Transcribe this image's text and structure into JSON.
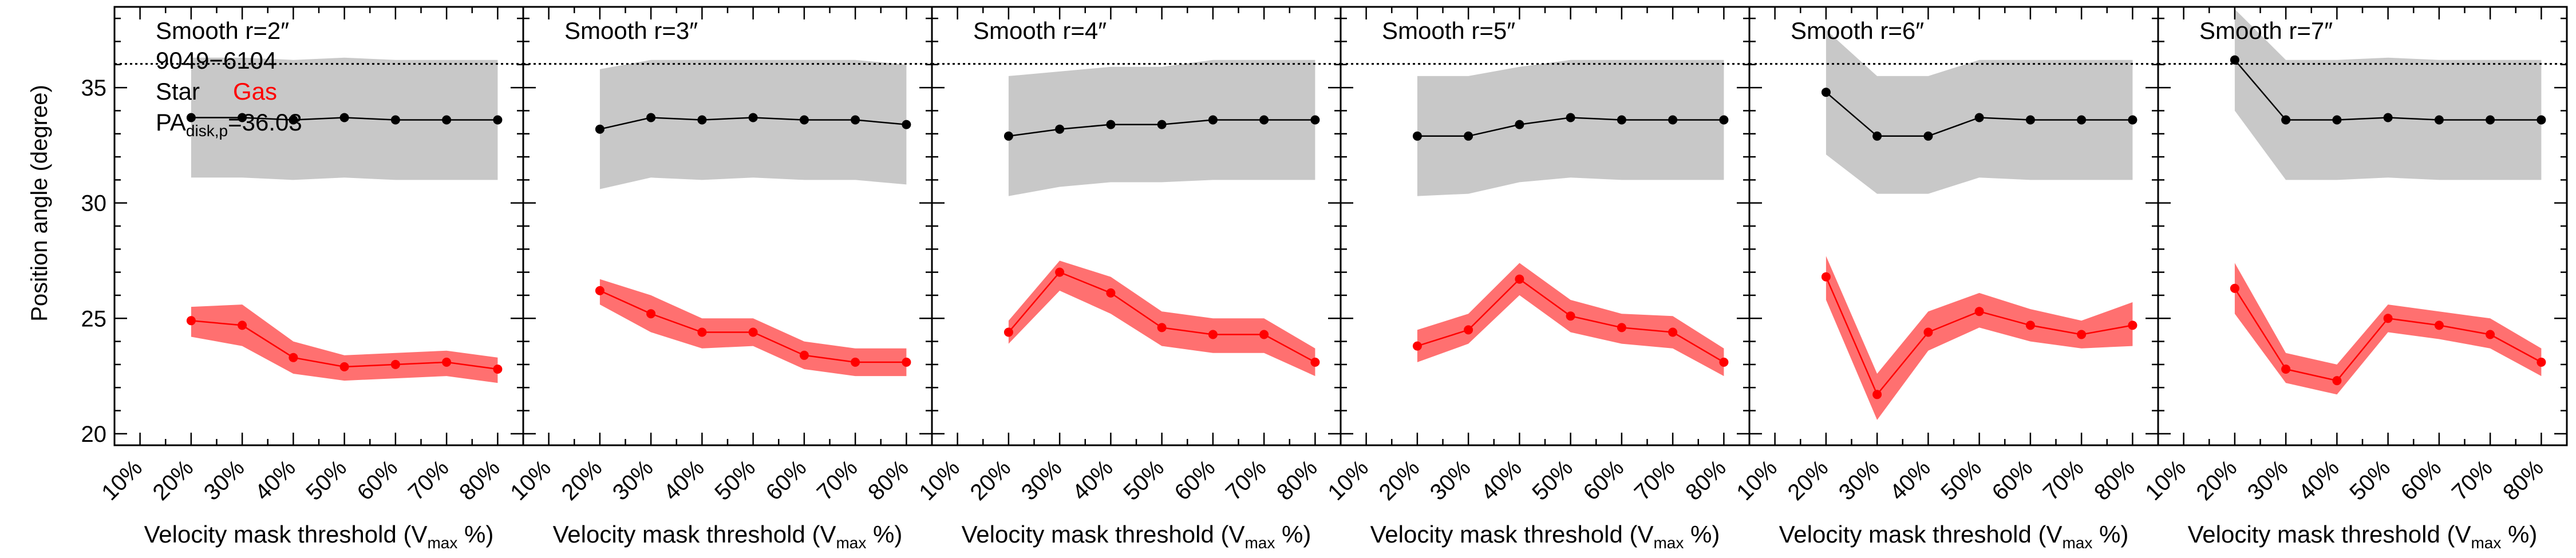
{
  "figure": {
    "ylabel": "Position angle (degree)",
    "legend": {
      "object_id": "9049−6104",
      "star_label": "Star",
      "gas_label": "Gas",
      "pa_prefix": "PA",
      "pa_sub": "disk,p",
      "pa_value": "=36.03"
    },
    "reference_line": 36.03,
    "colors": {
      "star": "#000000",
      "star_band": "#c8c8c8",
      "gas": "#ff0000",
      "gas_band": "#ff7070",
      "reference": "#000000"
    }
  },
  "chart_data": [
    {
      "type": "line",
      "title": "Smooth r=2″",
      "xlabel": "Velocity mask threshold (V",
      "xlabel_sub": "max",
      "xlabel_end": " %)",
      "categories": [
        "10%",
        "20%",
        "30%",
        "40%",
        "50%",
        "60%",
        "70%",
        "80%"
      ],
      "x": [
        20,
        30,
        40,
        50,
        60,
        70,
        80
      ],
      "xlim": [
        5,
        85
      ],
      "ylim": [
        19.5,
        38.5
      ],
      "yticks": [
        20,
        25,
        30,
        35
      ],
      "series": [
        {
          "name": "Star",
          "values": [
            33.7,
            33.7,
            33.6,
            33.7,
            33.6,
            33.6,
            33.6
          ],
          "band_lo": [
            31.1,
            31.1,
            31.0,
            31.1,
            31.0,
            31.0,
            31.0
          ],
          "band_hi": [
            36.3,
            36.3,
            36.2,
            36.3,
            36.2,
            36.2,
            36.2
          ]
        },
        {
          "name": "Gas",
          "values": [
            24.9,
            24.7,
            23.3,
            22.9,
            23.0,
            23.1,
            22.8
          ],
          "band_lo": [
            24.2,
            23.8,
            22.6,
            22.3,
            22.4,
            22.5,
            22.2
          ],
          "band_hi": [
            25.5,
            25.6,
            24.0,
            23.4,
            23.5,
            23.6,
            23.3
          ]
        }
      ]
    },
    {
      "type": "line",
      "title": "Smooth r=3″",
      "xlabel": "Velocity mask threshold (V",
      "xlabel_sub": "max",
      "xlabel_end": " %)",
      "categories": [
        "10%",
        "20%",
        "30%",
        "40%",
        "50%",
        "60%",
        "70%",
        "80%"
      ],
      "x": [
        20,
        30,
        40,
        50,
        60,
        70,
        80
      ],
      "xlim": [
        5,
        85
      ],
      "ylim": [
        19.5,
        38.5
      ],
      "yticks": [
        20,
        25,
        30,
        35
      ],
      "series": [
        {
          "name": "Star",
          "values": [
            33.2,
            33.7,
            33.6,
            33.7,
            33.6,
            33.6,
            33.4
          ],
          "band_lo": [
            30.6,
            31.1,
            31.0,
            31.1,
            31.0,
            31.0,
            30.8
          ],
          "band_hi": [
            35.8,
            36.2,
            36.2,
            36.2,
            36.2,
            36.2,
            36.0
          ]
        },
        {
          "name": "Gas",
          "values": [
            26.2,
            25.2,
            24.4,
            24.4,
            23.4,
            23.1,
            23.1
          ],
          "band_lo": [
            25.6,
            24.4,
            23.7,
            23.8,
            22.8,
            22.5,
            22.5
          ],
          "band_hi": [
            26.7,
            26.0,
            25.0,
            25.0,
            24.0,
            23.7,
            23.7
          ]
        }
      ]
    },
    {
      "type": "line",
      "title": "Smooth r=4″",
      "xlabel": "Velocity mask threshold (V",
      "xlabel_sub": "max",
      "xlabel_end": " %)",
      "categories": [
        "10%",
        "20%",
        "30%",
        "40%",
        "50%",
        "60%",
        "70%",
        "80%"
      ],
      "x": [
        20,
        30,
        40,
        50,
        60,
        70,
        80
      ],
      "xlim": [
        5,
        85
      ],
      "ylim": [
        19.5,
        38.5
      ],
      "yticks": [
        20,
        25,
        30,
        35
      ],
      "series": [
        {
          "name": "Star",
          "values": [
            32.9,
            33.2,
            33.4,
            33.4,
            33.6,
            33.6,
            33.6
          ],
          "band_lo": [
            30.3,
            30.7,
            30.9,
            30.9,
            31.0,
            31.0,
            31.0
          ],
          "band_hi": [
            35.5,
            35.7,
            35.9,
            35.9,
            36.2,
            36.2,
            36.2
          ]
        },
        {
          "name": "Gas",
          "values": [
            24.4,
            27.0,
            26.1,
            24.6,
            24.3,
            24.3,
            23.1
          ],
          "band_lo": [
            23.9,
            26.2,
            25.2,
            23.8,
            23.5,
            23.5,
            22.5
          ],
          "band_hi": [
            24.9,
            27.5,
            26.8,
            25.3,
            25.0,
            25.0,
            23.7
          ]
        }
      ]
    },
    {
      "type": "line",
      "title": "Smooth r=5″",
      "xlabel": "Velocity mask threshold (V",
      "xlabel_sub": "max",
      "xlabel_end": " %)",
      "categories": [
        "10%",
        "20%",
        "30%",
        "40%",
        "50%",
        "60%",
        "70%",
        "80%"
      ],
      "x": [
        20,
        30,
        40,
        50,
        60,
        70,
        80
      ],
      "xlim": [
        5,
        85
      ],
      "ylim": [
        19.5,
        38.5
      ],
      "yticks": [
        20,
        25,
        30,
        35
      ],
      "series": [
        {
          "name": "Star",
          "values": [
            32.9,
            32.9,
            33.4,
            33.7,
            33.6,
            33.6,
            33.6
          ],
          "band_lo": [
            30.3,
            30.4,
            30.9,
            31.1,
            31.0,
            31.0,
            31.0
          ],
          "band_hi": [
            35.5,
            35.5,
            35.9,
            36.2,
            36.2,
            36.2,
            36.2
          ]
        },
        {
          "name": "Gas",
          "values": [
            23.8,
            24.5,
            26.7,
            25.1,
            24.6,
            24.4,
            23.1
          ],
          "band_lo": [
            23.1,
            23.9,
            26.0,
            24.4,
            23.9,
            23.7,
            22.5
          ],
          "band_hi": [
            24.5,
            25.2,
            27.4,
            25.8,
            25.2,
            25.1,
            23.7
          ]
        }
      ]
    },
    {
      "type": "line",
      "title": "Smooth r=6″",
      "xlabel": "Velocity mask threshold (V",
      "xlabel_sub": "max",
      "xlabel_end": " %)",
      "categories": [
        "10%",
        "20%",
        "30%",
        "40%",
        "50%",
        "60%",
        "70%",
        "80%"
      ],
      "x": [
        20,
        30,
        40,
        50,
        60,
        70,
        80
      ],
      "xlim": [
        5,
        85
      ],
      "ylim": [
        19.5,
        38.5
      ],
      "yticks": [
        20,
        25,
        30,
        35
      ],
      "series": [
        {
          "name": "Star",
          "values": [
            34.8,
            32.9,
            32.9,
            33.7,
            33.6,
            33.6,
            33.6
          ],
          "band_lo": [
            32.1,
            30.4,
            30.4,
            31.1,
            31.0,
            31.0,
            31.0
          ],
          "band_hi": [
            37.5,
            35.5,
            35.5,
            36.2,
            36.2,
            36.2,
            36.2
          ]
        },
        {
          "name": "Gas",
          "values": [
            26.8,
            21.7,
            24.4,
            25.3,
            24.7,
            24.3,
            24.7
          ],
          "band_lo": [
            25.8,
            20.6,
            23.6,
            24.6,
            24.0,
            23.7,
            23.8
          ],
          "band_hi": [
            27.7,
            22.6,
            25.3,
            26.1,
            25.4,
            24.9,
            25.7
          ]
        }
      ]
    },
    {
      "type": "line",
      "title": "Smooth r=7″",
      "xlabel": "Velocity mask threshold (V",
      "xlabel_sub": "max",
      "xlabel_end": " %)",
      "categories": [
        "10%",
        "20%",
        "30%",
        "40%",
        "50%",
        "60%",
        "70%",
        "80%"
      ],
      "x": [
        20,
        30,
        40,
        50,
        60,
        70,
        80
      ],
      "xlim": [
        5,
        85
      ],
      "ylim": [
        19.5,
        38.5
      ],
      "yticks": [
        20,
        25,
        30,
        35
      ],
      "series": [
        {
          "name": "Star",
          "values": [
            36.2,
            33.6,
            33.6,
            33.7,
            33.6,
            33.6,
            33.6
          ],
          "band_lo": [
            34.0,
            31.0,
            31.0,
            31.1,
            31.0,
            31.0,
            31.0
          ],
          "band_hi": [
            38.4,
            36.2,
            36.2,
            36.3,
            36.2,
            36.2,
            36.2
          ]
        },
        {
          "name": "Gas",
          "values": [
            26.3,
            22.8,
            22.3,
            25.0,
            24.7,
            24.3,
            23.1
          ],
          "band_lo": [
            25.2,
            22.2,
            21.7,
            24.4,
            24.1,
            23.7,
            22.5
          ],
          "band_hi": [
            27.4,
            23.5,
            23.0,
            25.6,
            25.3,
            25.0,
            23.7
          ]
        }
      ]
    }
  ]
}
